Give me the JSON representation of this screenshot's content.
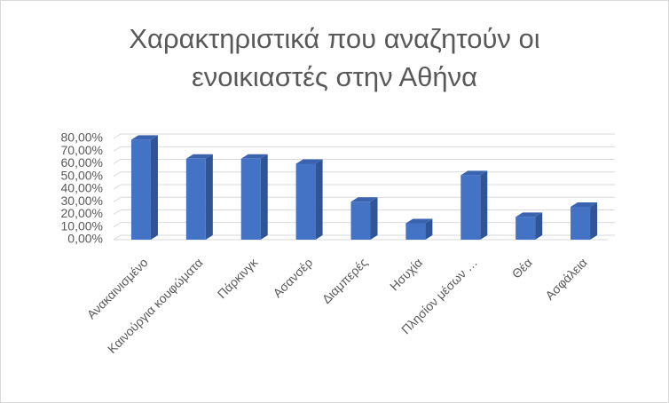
{
  "chart_data": {
    "type": "bar",
    "title": [
      "Χαρακτηριστικά που αναζητούν οι",
      "ενοικιαστές στην Αθήνα"
    ],
    "categories": [
      "Ανακαινισμένο",
      "Καινούργια κουφώματα",
      "Πάρκινγκ",
      "Ασανσέρ",
      "Διαμπερές",
      "Ησυχία",
      "Πλησίον μέσων …",
      "Θέα",
      "Ασφάλεια"
    ],
    "values": [
      79,
      64,
      64,
      60,
      30,
      13,
      51,
      18,
      26
    ],
    "color": "#4472c4",
    "ylim": [
      0,
      80
    ],
    "yticks": [
      {
        "value": 0,
        "label": "0,00%"
      },
      {
        "value": 10,
        "label": "10,00%"
      },
      {
        "value": 20,
        "label": "20,00%"
      },
      {
        "value": 30,
        "label": "30,00%"
      },
      {
        "value": 40,
        "label": "40,00%"
      },
      {
        "value": 50,
        "label": "50,00%"
      },
      {
        "value": 60,
        "label": "60,00%"
      },
      {
        "value": 70,
        "label": "70,00%"
      },
      {
        "value": 80,
        "label": "80,00%"
      }
    ],
    "grid": true
  }
}
